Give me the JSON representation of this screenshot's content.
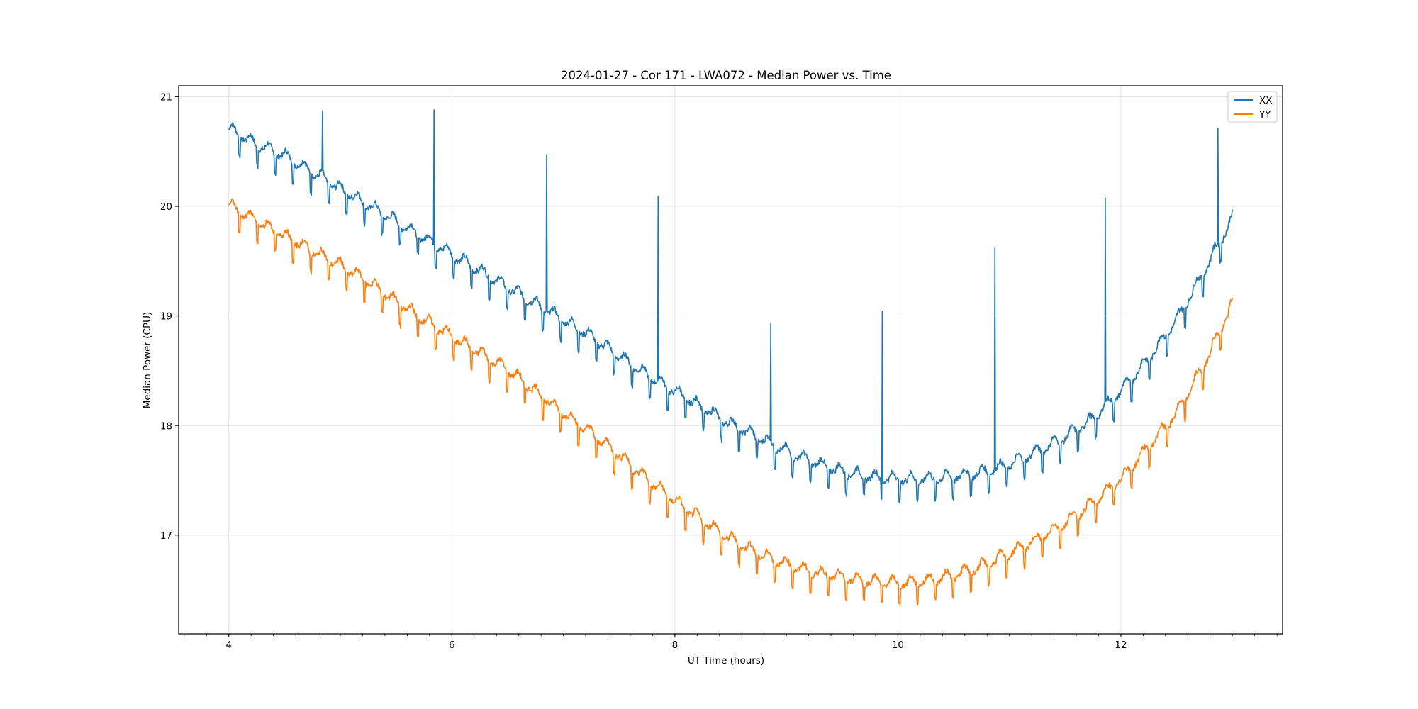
{
  "chart_data": {
    "type": "line",
    "title": "2024-01-27 - Cor 171 - LWA072 - Median Power vs. Time",
    "xlabel": "UT Time (hours)",
    "ylabel": "Median Power (CPU)",
    "xlim": [
      3.55,
      13.45
    ],
    "ylim": [
      16.1,
      21.1
    ],
    "xticks": [
      4,
      6,
      8,
      10,
      12
    ],
    "xtick_labels": [
      "4",
      "6",
      "8",
      "10",
      "12"
    ],
    "yticks": [
      17,
      18,
      19,
      20,
      21
    ],
    "ytick_labels": [
      "17",
      "18",
      "19",
      "20",
      "21"
    ],
    "grid": true,
    "legend_position": "top-right",
    "series": [
      {
        "name": "XX",
        "color": "#1f77b4",
        "x": [
          4.0,
          4.25,
          4.5,
          4.75,
          5.0,
          5.25,
          5.5,
          5.75,
          6.0,
          6.25,
          6.5,
          6.75,
          7.0,
          7.25,
          7.5,
          7.75,
          8.0,
          8.25,
          8.5,
          8.75,
          9.0,
          9.25,
          9.5,
          9.75,
          10.0,
          10.25,
          10.5,
          10.75,
          11.0,
          11.25,
          11.5,
          11.75,
          12.0,
          12.25,
          12.5,
          12.75,
          13.0
        ],
        "values": [
          20.7,
          20.55,
          20.45,
          20.3,
          20.15,
          20.0,
          19.85,
          19.7,
          19.55,
          19.4,
          19.25,
          19.1,
          18.95,
          18.8,
          18.62,
          18.45,
          18.3,
          18.15,
          18.0,
          17.88,
          17.75,
          17.65,
          17.57,
          17.52,
          17.5,
          17.5,
          17.52,
          17.56,
          17.63,
          17.75,
          17.88,
          18.05,
          18.3,
          18.6,
          18.95,
          19.4,
          19.88
        ],
        "spikes": [
          {
            "x": 4.84,
            "y": 20.87
          },
          {
            "x": 5.84,
            "y": 20.88
          },
          {
            "x": 6.85,
            "y": 20.47
          },
          {
            "x": 7.85,
            "y": 20.09
          },
          {
            "x": 8.86,
            "y": 18.93
          },
          {
            "x": 9.86,
            "y": 19.04
          },
          {
            "x": 10.87,
            "y": 19.62
          },
          {
            "x": 11.86,
            "y": 20.08
          },
          {
            "x": 12.87,
            "y": 20.71
          }
        ]
      },
      {
        "name": "YY",
        "color": "#ff7f0e",
        "x": [
          4.0,
          4.25,
          4.5,
          4.75,
          5.0,
          5.25,
          5.5,
          5.75,
          6.0,
          6.25,
          6.5,
          6.75,
          7.0,
          7.25,
          7.5,
          7.75,
          8.0,
          8.25,
          8.5,
          8.75,
          9.0,
          9.25,
          9.5,
          9.75,
          10.0,
          10.25,
          10.5,
          10.75,
          11.0,
          11.25,
          11.5,
          11.75,
          12.0,
          12.25,
          12.5,
          12.75,
          13.0
        ],
        "values": [
          20.0,
          19.85,
          19.72,
          19.58,
          19.45,
          19.3,
          19.12,
          18.95,
          18.8,
          18.65,
          18.5,
          18.3,
          18.1,
          17.92,
          17.72,
          17.5,
          17.3,
          17.12,
          16.95,
          16.82,
          16.72,
          16.65,
          16.6,
          16.57,
          16.55,
          16.57,
          16.62,
          16.7,
          16.82,
          16.95,
          17.1,
          17.28,
          17.5,
          17.8,
          18.1,
          18.55,
          19.1
        ],
        "spikes": []
      }
    ]
  }
}
